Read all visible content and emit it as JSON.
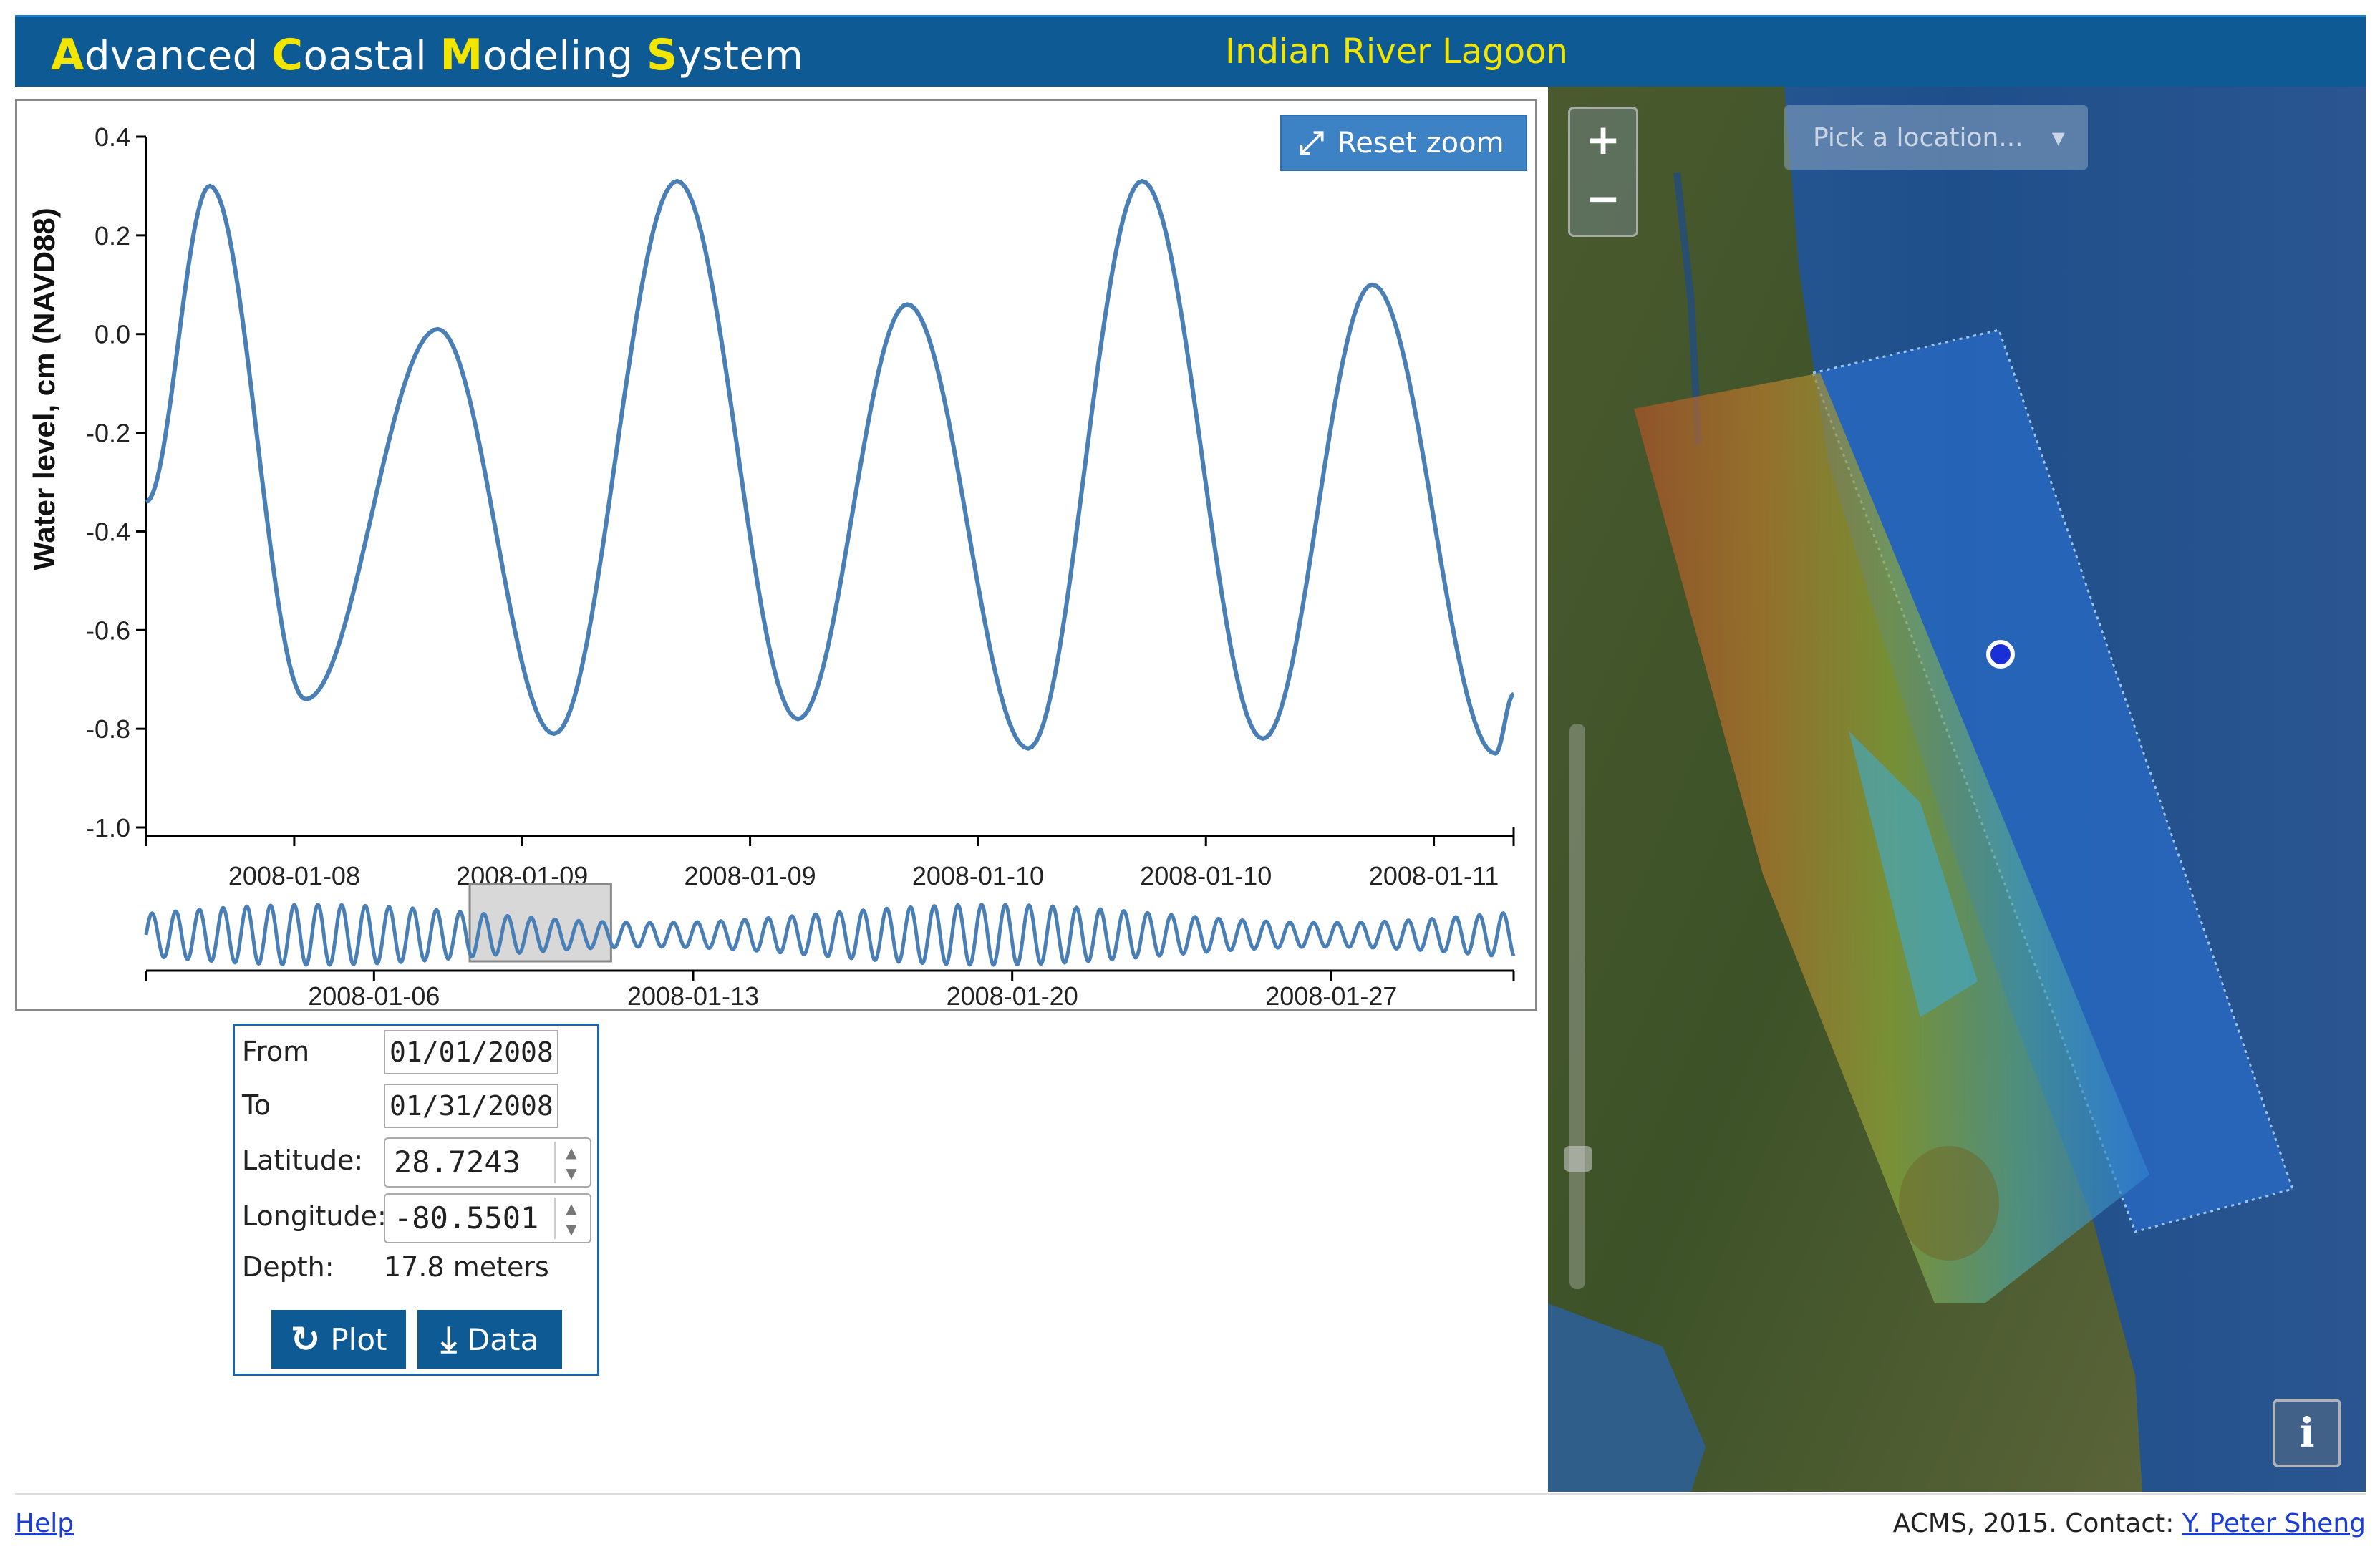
{
  "header": {
    "app_title_parts": [
      {
        "cap": "A",
        "rest": "dvanced "
      },
      {
        "cap": "C",
        "rest": "oastal "
      },
      {
        "cap": "M",
        "rest": "odeling "
      },
      {
        "cap": "S",
        "rest": "ystem"
      }
    ],
    "region": "Indian River Lagoon"
  },
  "chart": {
    "reset_zoom_label": "Reset zoom",
    "reset_zoom_icon": "expand-arrows-icon"
  },
  "chart_data": [
    {
      "type": "line",
      "ylabel": "Water level, cm (NAVD88)",
      "ylim": [
        -1.0,
        0.4
      ],
      "yticks": [
        "0.4",
        "0.2",
        "0.0",
        "-0.2",
        "-0.4",
        "-0.6",
        "-0.8",
        "-1.0"
      ],
      "ytick_values": [
        0.4,
        0.2,
        0.0,
        -0.2,
        -0.4,
        -0.6,
        -0.8,
        -1.0
      ],
      "xtick_labels": [
        "2008-01-08",
        "2008-01-09",
        "2008-01-09",
        "2008-01-10",
        "2008-01-10",
        "2008-01-11"
      ],
      "xtick_values": [
        0.65,
        1.65,
        2.65,
        3.65,
        4.65,
        5.65
      ],
      "x_range": [
        0,
        6.0
      ],
      "grid": false,
      "series": [
        {
          "values_by_extrema": [
            [
              0.0,
              -0.34
            ],
            [
              0.28,
              0.3
            ],
            [
              0.7,
              -0.74
            ],
            [
              1.28,
              0.01
            ],
            [
              1.79,
              -0.81
            ],
            [
              2.33,
              0.31
            ],
            [
              2.86,
              -0.78
            ],
            [
              3.34,
              0.06
            ],
            [
              3.87,
              -0.84
            ],
            [
              4.37,
              0.31
            ],
            [
              4.9,
              -0.82
            ],
            [
              5.38,
              0.1
            ],
            [
              5.92,
              -0.85
            ],
            [
              6.0,
              -0.73
            ]
          ],
          "color": "#4a7fb5"
        }
      ]
    },
    {
      "type": "line",
      "role": "navigator",
      "xtick_labels": [
        "2008-01-06",
        "2008-01-13",
        "2008-01-20",
        "2008-01-27"
      ],
      "xtick_values": [
        5,
        12,
        19,
        26
      ],
      "x_range": [
        0,
        30
      ],
      "selected_range": [
        7.1,
        10.2
      ],
      "series": [
        {
          "period_days": 0.52,
          "amplitude_min": 0.4,
          "amplitude_max": 1.0,
          "color": "#4a7fb5"
        }
      ]
    }
  ],
  "form": {
    "from_label": "From",
    "from_value": "01/01/2008",
    "to_label": "To",
    "to_value": "01/31/2008",
    "lat_label": "Latitude:",
    "lat_value": "28.7243",
    "lon_label": "Longitude:",
    "lon_value": "-80.5501",
    "depth_label": "Depth:",
    "depth_value": "17.8 meters",
    "plot_label": "Plot",
    "plot_icon": "refresh-icon",
    "data_label": "Data",
    "data_icon": "download-icon"
  },
  "map": {
    "zoom_in": "+",
    "zoom_out": "−",
    "pick_location_placeholder": "Pick a location...",
    "info_label": "i"
  },
  "footer": {
    "help": "Help",
    "credit": "ACMS, 2015.  Contact: ",
    "contact_name": "Y. Peter Sheng"
  }
}
